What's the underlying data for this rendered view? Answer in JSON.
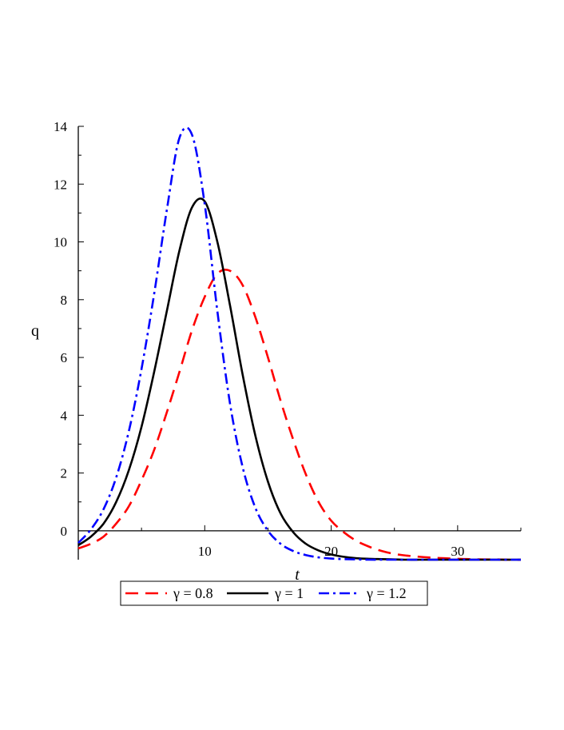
{
  "chart_data": {
    "type": "line",
    "title": "",
    "xlabel": "t",
    "ylabel": "q",
    "xlim": [
      0,
      35
    ],
    "ylim": [
      -1,
      14
    ],
    "x_ticks": [
      10,
      20,
      30
    ],
    "x_tick_labels": [
      "10",
      "20",
      "30"
    ],
    "y_ticks": [
      0,
      2,
      4,
      6,
      8,
      10,
      12,
      14
    ],
    "y_tick_labels": [
      "0",
      "2",
      "4",
      "6",
      "8",
      "10",
      "12",
      "14"
    ],
    "grid": false,
    "legend_position": "bottom",
    "x": [
      0,
      1,
      2,
      3,
      4,
      5,
      6,
      7,
      8,
      9,
      10,
      11,
      12,
      13,
      14,
      15,
      16,
      17,
      18,
      19,
      20,
      21,
      22,
      23,
      24,
      25,
      26,
      27,
      28,
      29,
      30,
      31,
      32,
      33,
      34,
      35
    ],
    "series": [
      {
        "name": "γ = 0.8",
        "color": "#ff0000",
        "dash": "dash",
        "values": [
          -0.61,
          -0.45,
          -0.2,
          0.25,
          0.85,
          1.75,
          2.8,
          4.1,
          5.5,
          6.95,
          8.1,
          8.9,
          9.0,
          8.5,
          7.4,
          6.0,
          4.5,
          3.15,
          1.95,
          1.0,
          0.35,
          -0.05,
          -0.35,
          -0.55,
          -0.7,
          -0.8,
          -0.86,
          -0.9,
          -0.93,
          -0.95,
          -0.97,
          -0.98,
          -0.99,
          -0.99,
          -1.0,
          -1.0
        ]
      },
      {
        "name": "γ = 1",
        "color": "#000000",
        "dash": "solid",
        "values": [
          -0.5,
          -0.2,
          0.25,
          1.0,
          2.1,
          3.6,
          5.5,
          7.6,
          9.7,
          11.2,
          11.4,
          10.0,
          7.8,
          5.4,
          3.3,
          1.7,
          0.6,
          -0.05,
          -0.45,
          -0.68,
          -0.82,
          -0.9,
          -0.95,
          -0.97,
          -0.98,
          -0.99,
          -1.0,
          -1.0,
          -1.0,
          -1.0,
          -1.0,
          -1.0,
          -1.0,
          -1.0,
          -1.0,
          -1.0
        ]
      },
      {
        "name": "γ = 1.2",
        "color": "#0000ff",
        "dash": "dashdot",
        "values": [
          -0.42,
          0.05,
          0.75,
          1.85,
          3.45,
          5.6,
          8.2,
          11.1,
          13.6,
          13.7,
          11.3,
          7.6,
          4.4,
          2.2,
          0.8,
          0.0,
          -0.45,
          -0.7,
          -0.84,
          -0.92,
          -0.96,
          -0.98,
          -0.99,
          -1.0,
          -1.0,
          -1.0,
          -1.0,
          -1.0,
          -1.0,
          -1.0,
          -1.0,
          -1.0,
          -1.0,
          -1.0,
          -1.0,
          -1.0
        ]
      }
    ]
  }
}
